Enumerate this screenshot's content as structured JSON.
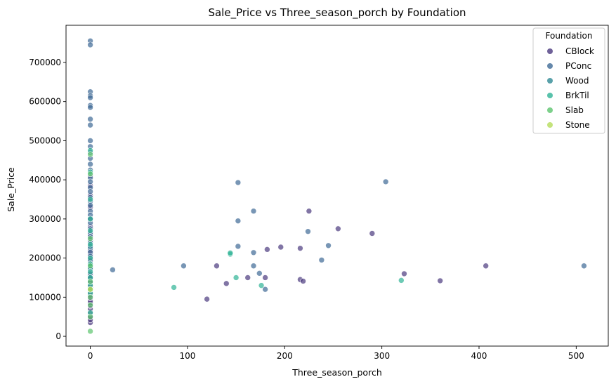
{
  "chart_data": {
    "type": "scatter",
    "title": "Sale_Price vs Three_season_porch by Foundation",
    "xlabel": "Three_season_porch",
    "ylabel": "Sale_Price",
    "xlim": [
      -25,
      533
    ],
    "ylim": [
      -25000,
      795000
    ],
    "xticks": [
      0,
      100,
      200,
      300,
      400,
      500
    ],
    "yticks": [
      0,
      100000,
      200000,
      300000,
      400000,
      500000,
      600000,
      700000
    ],
    "grid": false,
    "legend": {
      "title": "Foundation",
      "placement": "top-right",
      "entries": [
        "CBlock",
        "PConc",
        "Wood",
        "BrkTil",
        "Slab",
        "Stone"
      ]
    },
    "colors": {
      "CBlock": "#4b3a7f",
      "PConc": "#3f6a96",
      "Wood": "#2f8a95",
      "BrkTil": "#2fb396",
      "Slab": "#5cc46e",
      "Stone": "#b5dc5b"
    },
    "series": [
      {
        "name": "CBlock",
        "points": [
          [
            0,
            35000
          ],
          [
            0,
            42000
          ],
          [
            0,
            50000
          ],
          [
            0,
            62000
          ],
          [
            0,
            70000
          ],
          [
            0,
            78000
          ],
          [
            0,
            85000
          ],
          [
            0,
            90000
          ],
          [
            0,
            98000
          ],
          [
            0,
            105000
          ],
          [
            0,
            112000
          ],
          [
            0,
            118000
          ],
          [
            0,
            125000
          ],
          [
            0,
            132000
          ],
          [
            0,
            140000
          ],
          [
            0,
            148000
          ],
          [
            0,
            155000
          ],
          [
            0,
            162000
          ],
          [
            0,
            170000
          ],
          [
            0,
            178000
          ],
          [
            0,
            185000
          ],
          [
            0,
            192000
          ],
          [
            0,
            200000
          ],
          [
            0,
            210000
          ],
          [
            0,
            220000
          ],
          [
            0,
            230000
          ],
          [
            0,
            245000
          ],
          [
            0,
            260000
          ],
          [
            0,
            280000
          ],
          [
            0,
            300000
          ],
          [
            0,
            330000
          ],
          [
            0,
            360000
          ],
          [
            0,
            385000
          ],
          [
            0,
            410000
          ],
          [
            120,
            95000
          ],
          [
            130,
            180000
          ],
          [
            140,
            135000
          ],
          [
            162,
            150000
          ],
          [
            180,
            150000
          ],
          [
            182,
            222000
          ],
          [
            196,
            228000
          ],
          [
            216,
            225000
          ],
          [
            216,
            145000
          ],
          [
            219,
            141000
          ],
          [
            225,
            320000
          ],
          [
            255,
            275000
          ],
          [
            290,
            263000
          ],
          [
            323,
            160000
          ],
          [
            360,
            142000
          ],
          [
            407,
            180000
          ]
        ]
      },
      {
        "name": "PConc",
        "points": [
          [
            0,
            755000
          ],
          [
            0,
            745000
          ],
          [
            0,
            625000
          ],
          [
            0,
            615000
          ],
          [
            0,
            610000
          ],
          [
            0,
            590000
          ],
          [
            0,
            585000
          ],
          [
            0,
            555000
          ],
          [
            0,
            540000
          ],
          [
            0,
            500000
          ],
          [
            0,
            485000
          ],
          [
            0,
            470000
          ],
          [
            0,
            455000
          ],
          [
            0,
            440000
          ],
          [
            0,
            425000
          ],
          [
            0,
            405000
          ],
          [
            0,
            395000
          ],
          [
            0,
            380000
          ],
          [
            0,
            370000
          ],
          [
            0,
            355000
          ],
          [
            0,
            345000
          ],
          [
            0,
            335000
          ],
          [
            0,
            320000
          ],
          [
            0,
            310000
          ],
          [
            0,
            300000
          ],
          [
            0,
            290000
          ],
          [
            0,
            275000
          ],
          [
            0,
            265000
          ],
          [
            0,
            255000
          ],
          [
            0,
            240000
          ],
          [
            0,
            225000
          ],
          [
            0,
            215000
          ],
          [
            0,
            205000
          ],
          [
            0,
            195000
          ],
          [
            0,
            182000
          ],
          [
            0,
            172000
          ],
          [
            0,
            160000
          ],
          [
            0,
            150000
          ],
          [
            0,
            138000
          ],
          [
            23,
            170000
          ],
          [
            96,
            180000
          ],
          [
            152,
            393000
          ],
          [
            152,
            295000
          ],
          [
            152,
            230000
          ],
          [
            168,
            320000
          ],
          [
            168,
            214000
          ],
          [
            168,
            180000
          ],
          [
            174,
            161000
          ],
          [
            180,
            120000
          ],
          [
            224,
            268000
          ],
          [
            238,
            195000
          ],
          [
            245,
            232000
          ],
          [
            304,
            395000
          ],
          [
            508,
            180000
          ]
        ]
      },
      {
        "name": "Wood",
        "points": [
          [
            0,
            175000
          ],
          [
            0,
            230000
          ]
        ]
      },
      {
        "name": "BrkTil",
        "points": [
          [
            0,
            60000
          ],
          [
            0,
            110000
          ],
          [
            0,
            130000
          ],
          [
            0,
            150000
          ],
          [
            0,
            165000
          ],
          [
            0,
            185000
          ],
          [
            0,
            200000
          ],
          [
            0,
            235000
          ],
          [
            0,
            270000
          ],
          [
            0,
            300000
          ],
          [
            0,
            350000
          ],
          [
            0,
            420000
          ],
          [
            0,
            475000
          ],
          [
            86,
            125000
          ],
          [
            144,
            210000
          ],
          [
            144,
            213000
          ],
          [
            150,
            150000
          ],
          [
            176,
            130000
          ],
          [
            320,
            143000
          ]
        ]
      },
      {
        "name": "Slab",
        "points": [
          [
            0,
            13000
          ],
          [
            0,
            50000
          ],
          [
            0,
            80000
          ],
          [
            0,
            100000
          ],
          [
            0,
            120000
          ],
          [
            0,
            140000
          ],
          [
            0,
            180000
          ],
          [
            0,
            250000
          ],
          [
            0,
            415000
          ],
          [
            0,
            465000
          ]
        ]
      },
      {
        "name": "Stone",
        "points": [
          [
            0,
            120000
          ]
        ]
      }
    ]
  }
}
